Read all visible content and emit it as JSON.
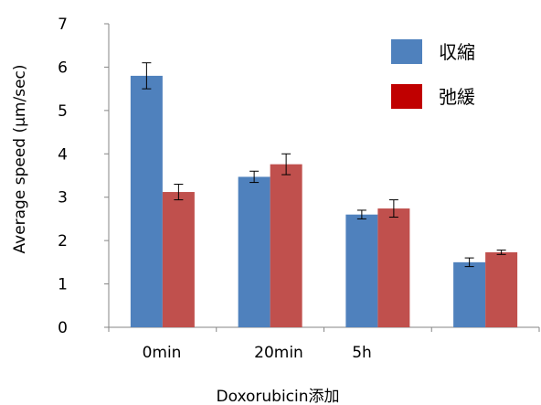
{
  "chart_data": {
    "type": "bar",
    "title": "",
    "xlabel": "Doxorubicin添加",
    "ylabel": "Average speed (μm/sec)",
    "ylim": [
      0,
      7
    ],
    "y_ticks": [
      "0",
      "1",
      "2",
      "3",
      "4",
      "5",
      "6",
      "7"
    ],
    "categories": [
      "0min",
      "20min",
      "5h",
      ""
    ],
    "series": [
      {
        "name": "収縮",
        "color": "#4f81bd",
        "values": [
          5.8,
          3.47,
          2.6,
          1.5
        ],
        "errors": [
          0.3,
          0.13,
          0.1,
          0.1
        ]
      },
      {
        "name": "弛緩",
        "color": "#c0504d",
        "values": [
          3.12,
          3.76,
          2.74,
          1.73
        ],
        "errors": [
          0.18,
          0.24,
          0.2,
          0.05
        ]
      }
    ],
    "legend": {
      "position": "top-right",
      "swatch_colors": [
        "#4f81bd",
        "#c00000"
      ]
    },
    "grid": false
  }
}
